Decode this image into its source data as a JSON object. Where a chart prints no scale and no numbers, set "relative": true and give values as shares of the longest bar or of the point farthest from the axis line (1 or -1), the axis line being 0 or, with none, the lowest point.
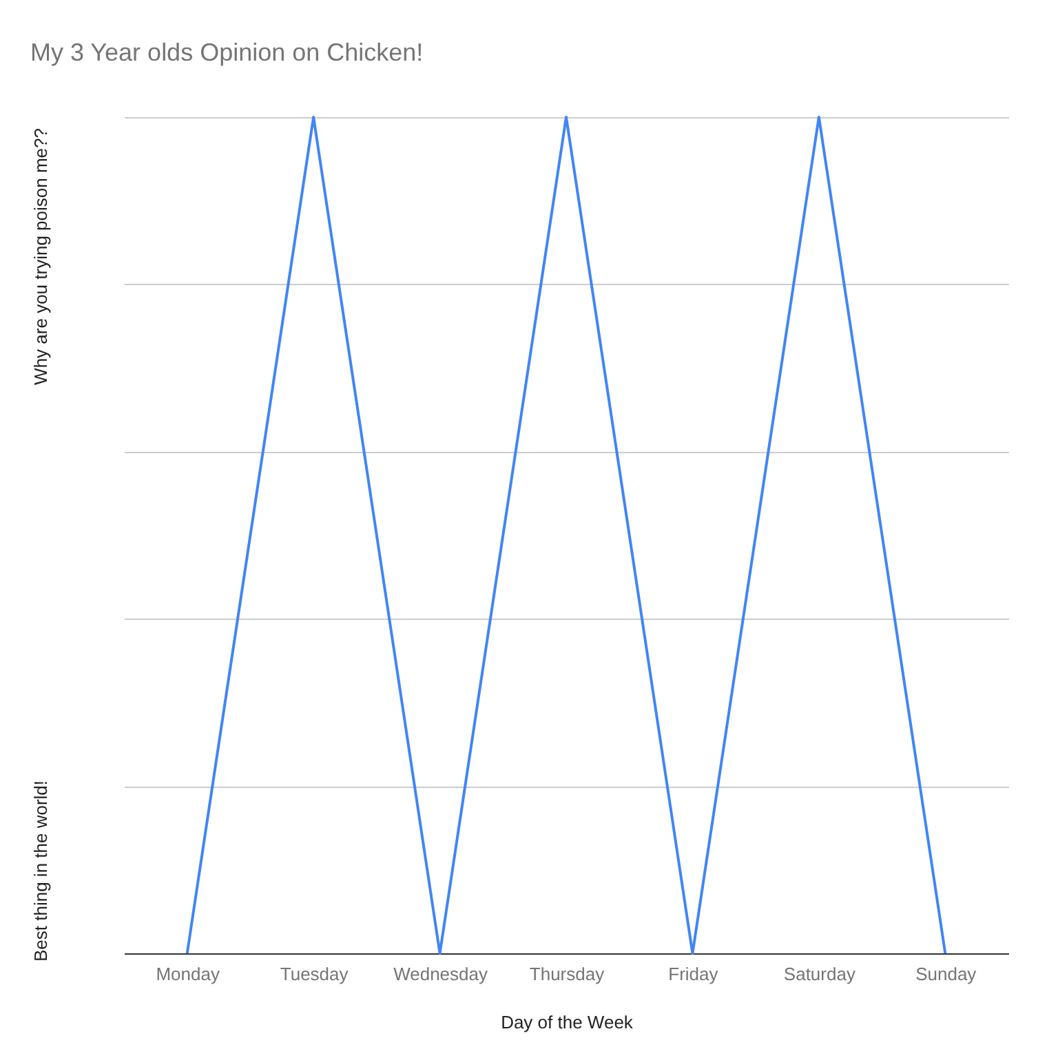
{
  "chart_data": {
    "type": "line",
    "title": "My 3 Year olds Opinion on Chicken!",
    "xlabel": "Day of the Week",
    "categories": [
      "Monday",
      "Tuesday",
      "Wednesday",
      "Thursday",
      "Friday",
      "Saturday",
      "Sunday"
    ],
    "series": [
      {
        "color": "#4285f4",
        "values": [
          0,
          1,
          0,
          1,
          0,
          1,
          0
        ]
      }
    ],
    "relative": true,
    "annotations": [
      "Best thing in the world!",
      "Why are you trying poison me??"
    ],
    "grid": "y"
  }
}
